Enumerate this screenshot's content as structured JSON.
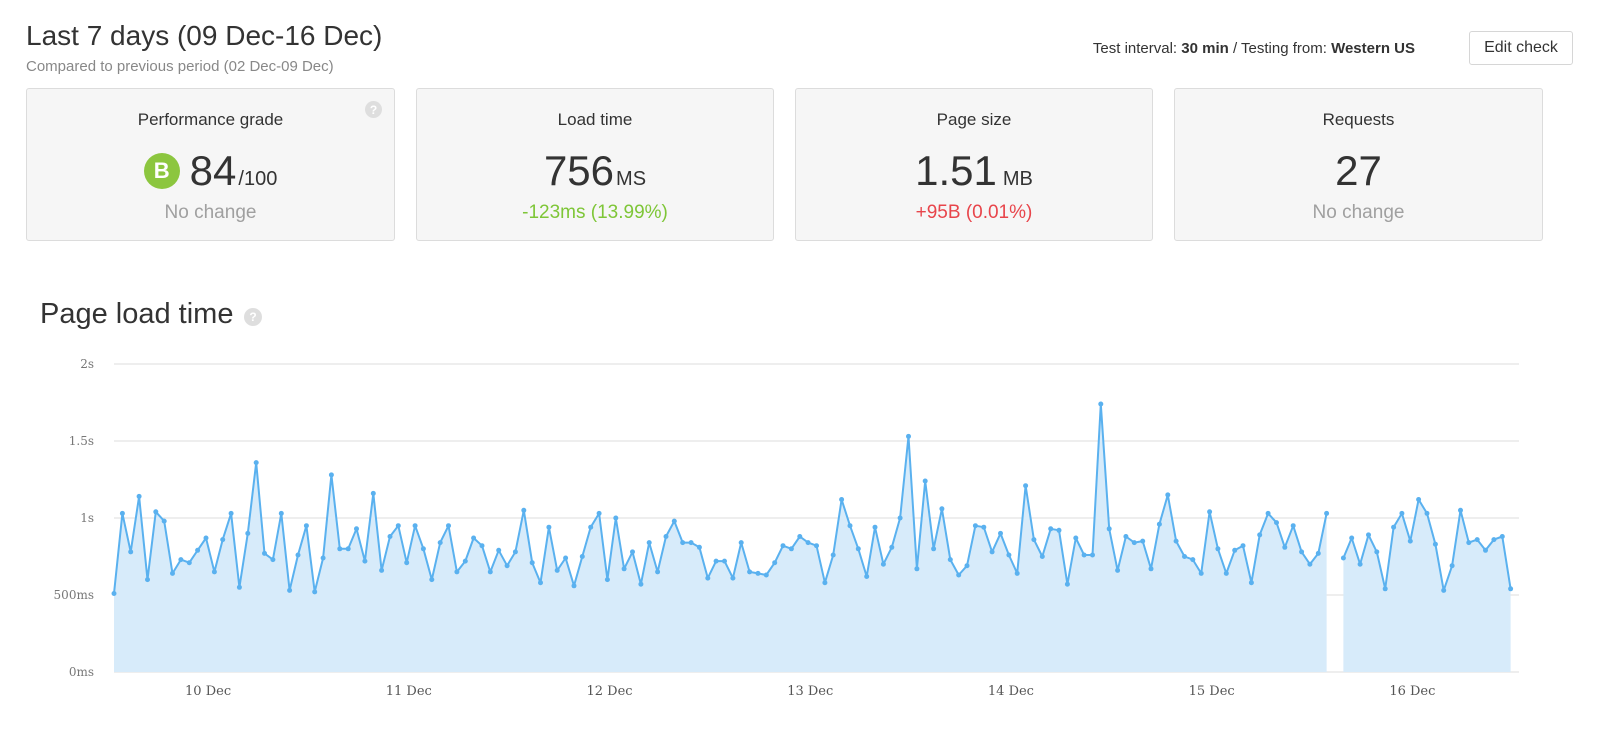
{
  "header": {
    "title": "Last 7 days (09 Dec-16 Dec)",
    "subtitle": "Compared to previous period (02 Dec-09 Dec)",
    "interval_label": "Test interval:",
    "interval_value": "30 min",
    "separator": " / ",
    "from_label": "Testing from:",
    "from_value": "Western US",
    "edit_button": "Edit check"
  },
  "cards": {
    "grade": {
      "title": "Performance grade",
      "letter": "B",
      "value": "84",
      "unit": "/100",
      "change": "No change",
      "help_icon": "question-icon"
    },
    "load": {
      "title": "Load time",
      "value": "756",
      "unit": "MS",
      "change": "-123ms (13.99%)"
    },
    "size": {
      "title": "Page size",
      "value": "1.51",
      "unit": "MB",
      "change": "+95B (0.01%)"
    },
    "requests": {
      "title": "Requests",
      "value": "27",
      "change": "No change"
    }
  },
  "colors": {
    "good": "#7ec637",
    "bad": "#e8454b",
    "grade": "#8cc63f",
    "line": "#5ab1ef",
    "fill": "#d7ebfa"
  },
  "section": {
    "title": "Page load time",
    "help_icon": "question-icon"
  },
  "chart_data": {
    "type": "area",
    "title": "Page load time",
    "y_unit": "ms",
    "ylim": [
      0,
      2000
    ],
    "yticks": [
      0,
      500,
      1000,
      1500,
      2000
    ],
    "ytick_labels": [
      "0ms",
      "500ms",
      "1s",
      "1.5s",
      "2s"
    ],
    "xlim": [
      0,
      336
    ],
    "xticks": [
      {
        "label": "10 Dec",
        "x": 22.5
      },
      {
        "label": "11 Dec",
        "x": 70.5
      },
      {
        "label": "12 Dec",
        "x": 118.5
      },
      {
        "label": "13 Dec",
        "x": 166.5
      },
      {
        "label": "14 Dec",
        "x": 214.5
      },
      {
        "label": "15 Dec",
        "x": 262.5
      },
      {
        "label": "16 Dec",
        "x": 310.5
      }
    ],
    "grid": true,
    "legend": "none",
    "series": [
      {
        "values": [
          [
            0,
            510
          ],
          [
            2,
            1030
          ],
          [
            4,
            780
          ],
          [
            6,
            1140
          ],
          [
            8,
            600
          ],
          [
            10,
            1040
          ],
          [
            12,
            980
          ],
          [
            14,
            640
          ],
          [
            16,
            730
          ],
          [
            18,
            710
          ],
          [
            20,
            790
          ],
          [
            22,
            870
          ],
          [
            24,
            650
          ],
          [
            26,
            860
          ],
          [
            28,
            1030
          ],
          [
            30,
            550
          ],
          [
            32,
            900
          ],
          [
            34,
            1360
          ],
          [
            36,
            770
          ],
          [
            38,
            730
          ],
          [
            40,
            1030
          ],
          [
            42,
            530
          ],
          [
            44,
            760
          ],
          [
            46,
            950
          ],
          [
            48,
            520
          ],
          [
            50,
            740
          ],
          [
            52,
            1280
          ],
          [
            54,
            800
          ],
          [
            56,
            800
          ],
          [
            58,
            930
          ],
          [
            60,
            720
          ],
          [
            62,
            1160
          ],
          [
            64,
            660
          ],
          [
            66,
            880
          ],
          [
            68,
            950
          ],
          [
            70,
            710
          ],
          [
            72,
            950
          ],
          [
            74,
            800
          ],
          [
            76,
            600
          ],
          [
            78,
            840
          ],
          [
            80,
            950
          ],
          [
            82,
            650
          ],
          [
            84,
            720
          ],
          [
            86,
            870
          ],
          [
            88,
            820
          ],
          [
            90,
            650
          ],
          [
            92,
            790
          ],
          [
            94,
            690
          ],
          [
            96,
            780
          ],
          [
            98,
            1050
          ],
          [
            100,
            710
          ],
          [
            102,
            580
          ],
          [
            104,
            940
          ],
          [
            106,
            660
          ],
          [
            108,
            740
          ],
          [
            110,
            560
          ],
          [
            112,
            750
          ],
          [
            114,
            940
          ],
          [
            116,
            1030
          ],
          [
            118,
            600
          ],
          [
            120,
            1000
          ],
          [
            122,
            670
          ],
          [
            124,
            780
          ],
          [
            126,
            570
          ],
          [
            128,
            840
          ],
          [
            130,
            650
          ],
          [
            132,
            880
          ],
          [
            134,
            980
          ],
          [
            136,
            840
          ],
          [
            138,
            840
          ],
          [
            140,
            810
          ],
          [
            142,
            610
          ],
          [
            144,
            720
          ],
          [
            146,
            720
          ],
          [
            148,
            610
          ],
          [
            150,
            840
          ],
          [
            152,
            650
          ],
          [
            154,
            640
          ],
          [
            156,
            630
          ],
          [
            158,
            710
          ],
          [
            160,
            820
          ],
          [
            162,
            800
          ],
          [
            164,
            880
          ],
          [
            166,
            840
          ],
          [
            168,
            820
          ],
          [
            170,
            580
          ],
          [
            172,
            760
          ],
          [
            174,
            1120
          ],
          [
            176,
            950
          ],
          [
            178,
            800
          ],
          [
            180,
            620
          ],
          [
            182,
            940
          ],
          [
            184,
            700
          ],
          [
            186,
            810
          ],
          [
            188,
            1000
          ],
          [
            190,
            1530
          ],
          [
            192,
            670
          ],
          [
            194,
            1240
          ],
          [
            196,
            800
          ],
          [
            198,
            1060
          ],
          [
            200,
            730
          ],
          [
            202,
            630
          ],
          [
            204,
            690
          ],
          [
            206,
            950
          ],
          [
            208,
            940
          ],
          [
            210,
            780
          ],
          [
            212,
            900
          ],
          [
            214,
            760
          ],
          [
            216,
            640
          ],
          [
            218,
            1210
          ],
          [
            220,
            860
          ],
          [
            222,
            750
          ],
          [
            224,
            930
          ],
          [
            226,
            920
          ],
          [
            228,
            570
          ],
          [
            230,
            870
          ],
          [
            232,
            760
          ],
          [
            234,
            760
          ],
          [
            236,
            1740
          ],
          [
            238,
            930
          ],
          [
            240,
            660
          ],
          [
            242,
            880
          ],
          [
            244,
            840
          ],
          [
            246,
            850
          ],
          [
            248,
            670
          ],
          [
            250,
            960
          ],
          [
            252,
            1150
          ],
          [
            254,
            850
          ],
          [
            256,
            750
          ],
          [
            258,
            730
          ],
          [
            260,
            640
          ],
          [
            262,
            1040
          ],
          [
            264,
            800
          ],
          [
            266,
            640
          ],
          [
            268,
            790
          ],
          [
            270,
            820
          ],
          [
            272,
            580
          ],
          [
            274,
            890
          ],
          [
            276,
            1030
          ],
          [
            278,
            970
          ],
          [
            280,
            810
          ],
          [
            282,
            950
          ],
          [
            284,
            780
          ],
          [
            286,
            700
          ],
          [
            288,
            770
          ],
          [
            290,
            1030
          ],
          [
            294,
            740
          ],
          [
            296,
            870
          ],
          [
            298,
            700
          ],
          [
            300,
            890
          ],
          [
            302,
            780
          ],
          [
            304,
            540
          ],
          [
            306,
            940
          ],
          [
            308,
            1030
          ],
          [
            310,
            850
          ],
          [
            312,
            1120
          ],
          [
            314,
            1030
          ],
          [
            316,
            830
          ],
          [
            318,
            530
          ],
          [
            320,
            690
          ],
          [
            322,
            1050
          ],
          [
            324,
            840
          ],
          [
            326,
            860
          ],
          [
            328,
            790
          ],
          [
            330,
            860
          ],
          [
            332,
            880
          ],
          [
            334,
            540
          ]
        ]
      }
    ]
  }
}
